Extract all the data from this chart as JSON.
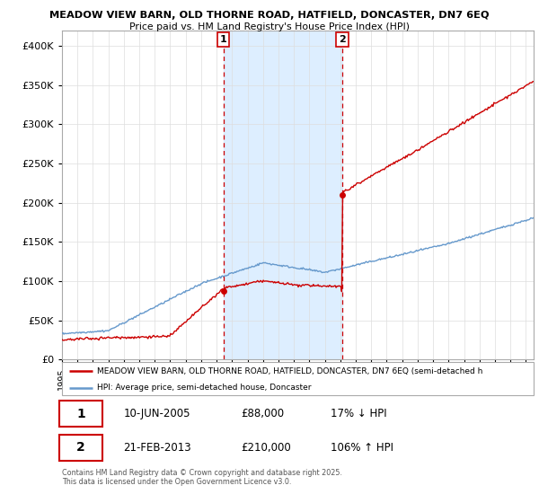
{
  "title_line1": "MEADOW VIEW BARN, OLD THORNE ROAD, HATFIELD, DONCASTER, DN7 6EQ",
  "title_line2": "Price paid vs. HM Land Registry's House Price Index (HPI)",
  "legend_label1": "MEADOW VIEW BARN, OLD THORNE ROAD, HATFIELD, DONCASTER, DN7 6EQ (semi-detached h",
  "legend_label2": "HPI: Average price, semi-detached house, Doncaster",
  "transaction1_date": "10-JUN-2005",
  "transaction1_price": "£88,000",
  "transaction1_hpi": "17% ↓ HPI",
  "transaction2_date": "21-FEB-2013",
  "transaction2_price": "£210,000",
  "transaction2_hpi": "106% ↑ HPI",
  "footer": "Contains HM Land Registry data © Crown copyright and database right 2025.\nThis data is licensed under the Open Government Licence v3.0.",
  "vline1_x": 2005.44,
  "vline2_x": 2013.13,
  "xlim": [
    1995,
    2025.5
  ],
  "ylim": [
    0,
    420000
  ],
  "yticks": [
    0,
    50000,
    100000,
    150000,
    200000,
    250000,
    300000,
    350000,
    400000
  ],
  "background_color": "#ffffff",
  "grid_color": "#dddddd",
  "hpi_line_color": "#6699cc",
  "price_line_color": "#cc0000",
  "vline_color": "#cc0000",
  "shade_color": "#ddeeff"
}
